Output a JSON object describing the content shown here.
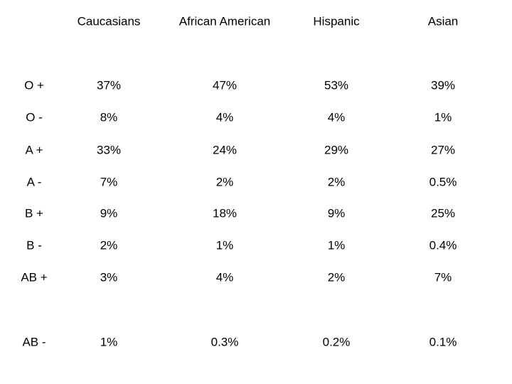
{
  "table": {
    "header": [
      "Caucasians",
      "African American",
      "Hispanic",
      "Asian"
    ],
    "rows": [
      [
        "O +",
        "37%",
        "47%",
        "53%",
        "39%"
      ],
      [
        "O -",
        "8%",
        "4%",
        "4%",
        "1%"
      ],
      [
        "A +",
        "33%",
        "24%",
        "29%",
        "27%"
      ],
      [
        "A -",
        "7%",
        "2%",
        "2%",
        "0.5%"
      ],
      [
        "B +",
        "9%",
        "18%",
        "9%",
        "25%"
      ],
      [
        "B -",
        "2%",
        "1%",
        "1%",
        "0.4%"
      ],
      [
        "AB +",
        "3%",
        "4%",
        "2%",
        "7%"
      ],
      [
        "AB -",
        "1%",
        "0.3%",
        "0.2%",
        "0.1%"
      ]
    ]
  }
}
